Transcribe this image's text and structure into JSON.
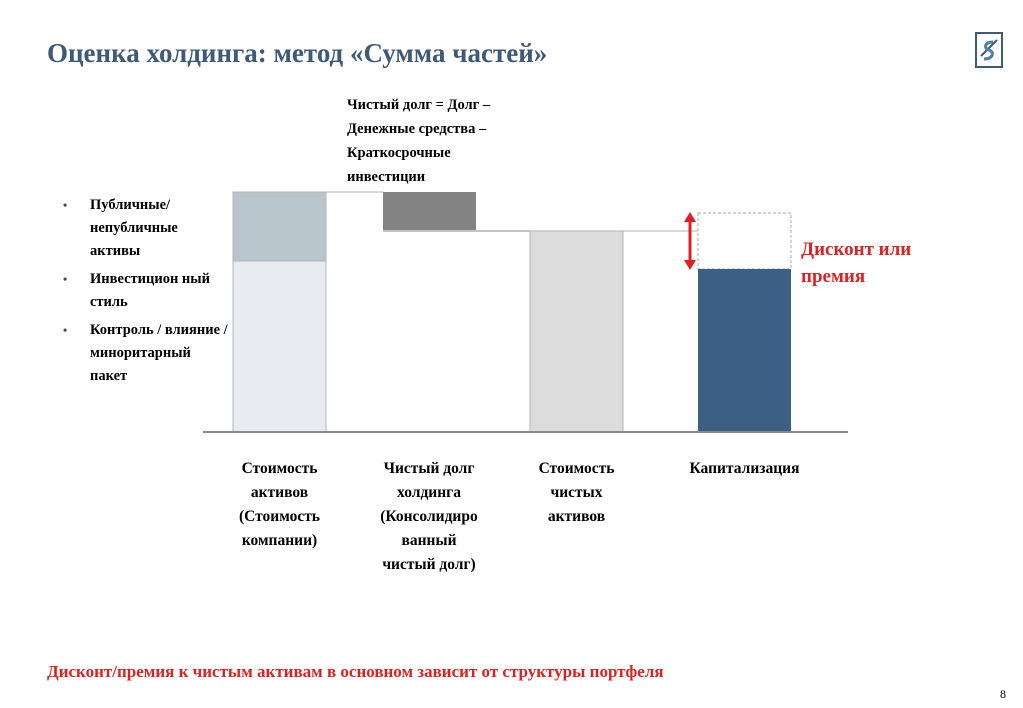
{
  "title": "Оценка холдинга: метод «Сумма частей»",
  "bullets": [
    "Публичные/ непубличные активы",
    "Инвестицион ный стиль",
    "Контроль / влияние / миноритарный пакет"
  ],
  "note": "Чистый долг = Долг –\nДенежные средства –\nКраткосрочные\nинвестиции",
  "categories": [
    "Стоимость\nактивов\n(Стоимость\nкомпании)",
    "Чистый долг\nхолдинга\n(Консолидиро\nванный\nчистый долг)",
    "Стоимость\nчистых\nактивов",
    "Капитализация"
  ],
  "discount_label": "Дисконт или\nпремия",
  "footer": "Дисконт/премия к чистым активам в основном зависит от структуры портфеля",
  "page_number": "8",
  "colors": {
    "title": "#3d5a78",
    "light_gray": "#e8ebef",
    "blue_gray": "#b9c5cd",
    "dark_gray": "#838383",
    "mid_gray": "#dcdcdc",
    "navy": "#3b6083",
    "accent_red": "#e02020"
  }
}
